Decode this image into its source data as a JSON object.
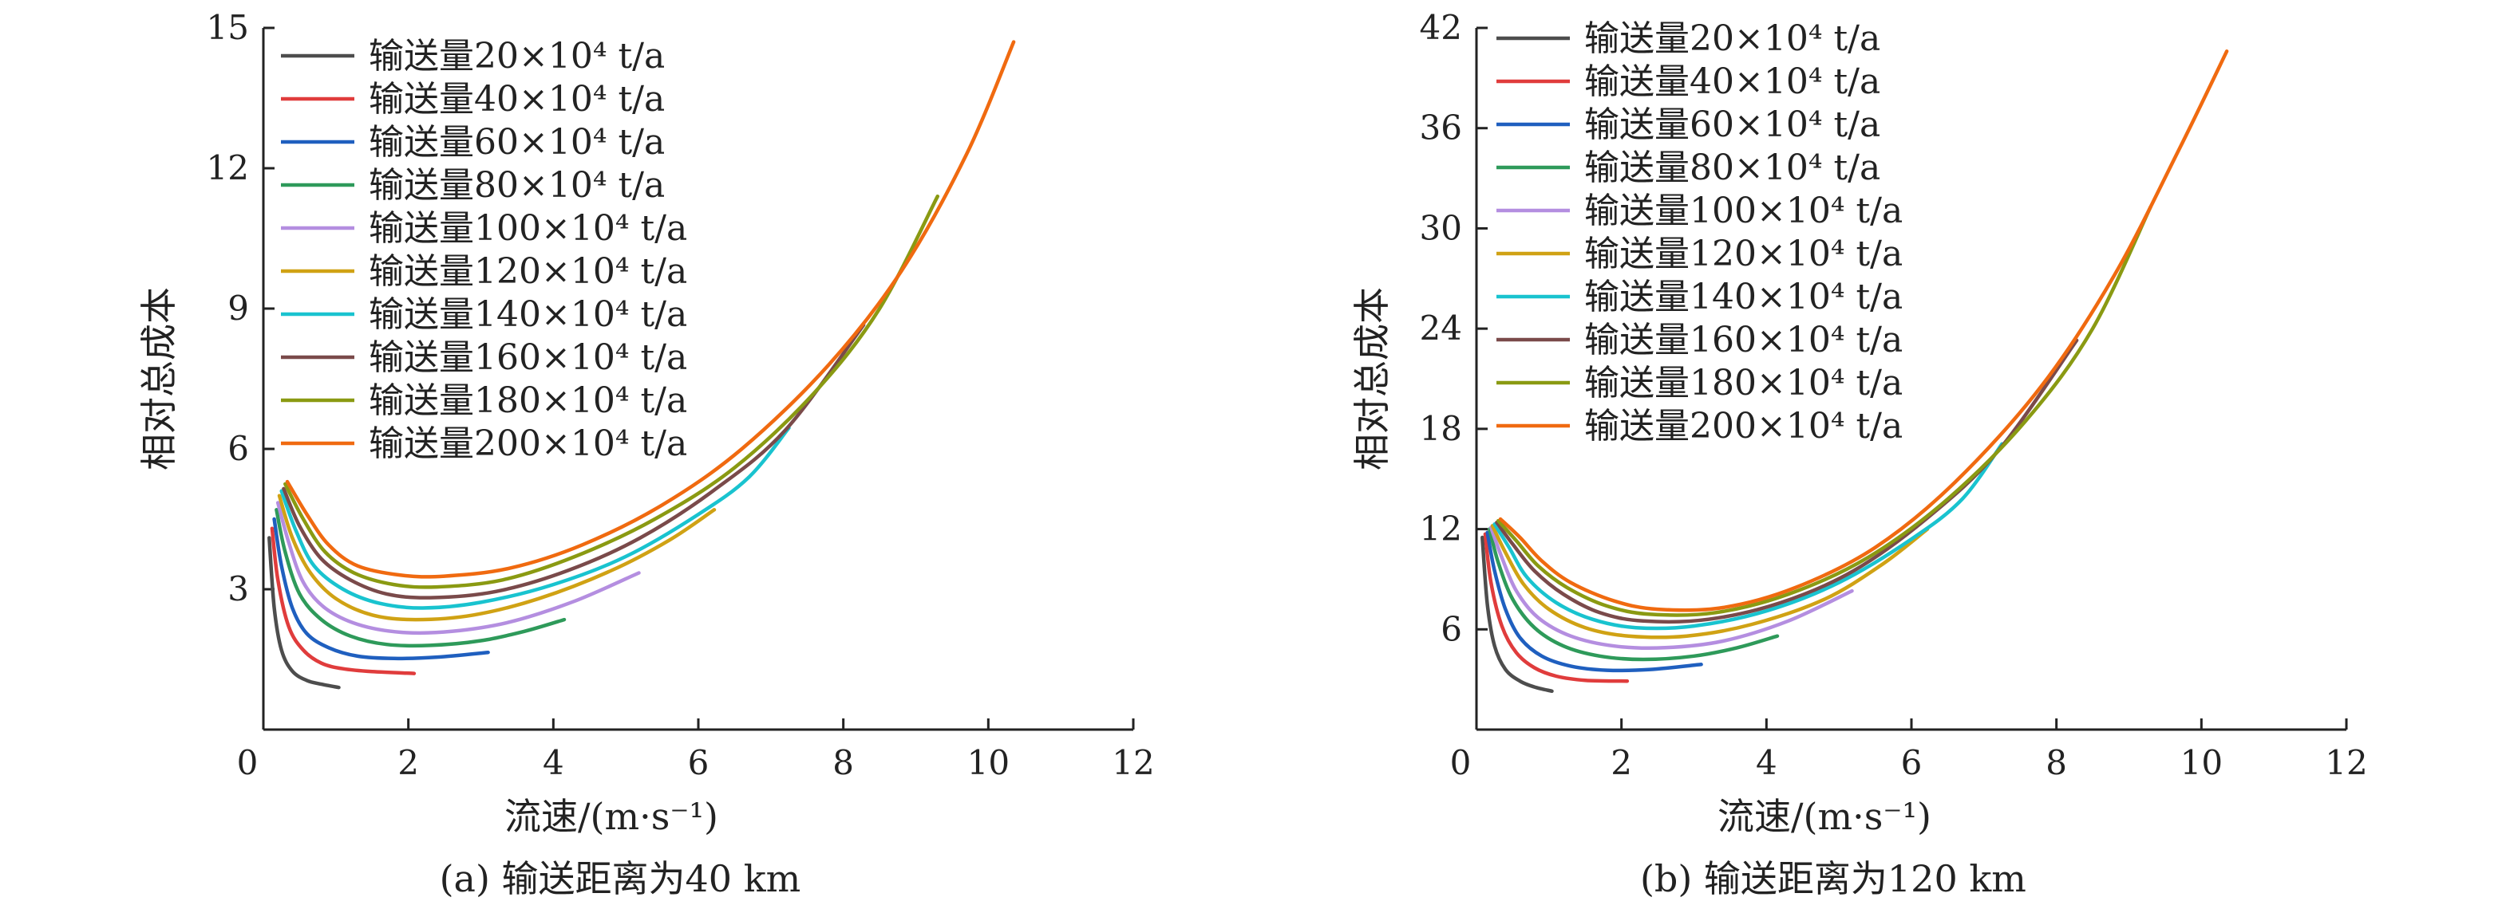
{
  "figure": {
    "captions": [
      "(a) 输送距离为40 km",
      "(b) 输送距离为120 km"
    ]
  },
  "series_meta": [
    {
      "name": "输送量20×10⁴ t/a",
      "color": "#4d4d4d"
    },
    {
      "name": "输送量40×10⁴ t/a",
      "color": "#e03c3c"
    },
    {
      "name": "输送量60×10⁴ t/a",
      "color": "#1f5fbf"
    },
    {
      "name": "输送量80×10⁴ t/a",
      "color": "#2e9a5a"
    },
    {
      "name": "输送量100×10⁴ t/a",
      "color": "#b48ee0"
    },
    {
      "name": "输送量120×10⁴ t/a",
      "color": "#d0a214"
    },
    {
      "name": "输送量140×10⁴ t/a",
      "color": "#19c3cf"
    },
    {
      "name": "输送量160×10⁴ t/a",
      "color": "#7a4a4a"
    },
    {
      "name": "输送量180×10⁴ t/a",
      "color": "#8a9a12"
    },
    {
      "name": "输送量200×10⁴ t/a",
      "color": "#f06a10"
    }
  ],
  "chart_data": [
    {
      "type": "line",
      "caption": "(a) 输送距离为40 km",
      "xlabel": "流速/(m·s⁻¹)",
      "ylabel": "相对总成本",
      "xlim": [
        0,
        12
      ],
      "ylim": [
        0,
        15
      ],
      "xticks": [
        0,
        2,
        4,
        6,
        8,
        10,
        12
      ],
      "yticks": [
        0,
        3,
        6,
        9,
        12,
        15
      ],
      "legend_position": "top-left",
      "series": [
        {
          "name": "输送量20×10⁴ t/a",
          "x": [
            0.08,
            0.15,
            0.25,
            0.4,
            0.6,
            0.8,
            1.04
          ],
          "y": [
            4.1,
            2.6,
            1.7,
            1.25,
            1.05,
            0.97,
            0.9
          ]
        },
        {
          "name": "输送量40×10⁴ t/a",
          "x": [
            0.12,
            0.2,
            0.35,
            0.55,
            0.8,
            1.1,
            1.5,
            2.08
          ],
          "y": [
            4.3,
            3.2,
            2.2,
            1.7,
            1.42,
            1.3,
            1.24,
            1.2
          ]
        },
        {
          "name": "输送量60×10⁴ t/a",
          "x": [
            0.15,
            0.25,
            0.4,
            0.6,
            0.9,
            1.3,
            1.8,
            2.4,
            3.1
          ],
          "y": [
            4.5,
            3.5,
            2.6,
            2.05,
            1.75,
            1.57,
            1.52,
            1.55,
            1.65
          ]
        },
        {
          "name": "输送量80×10⁴ t/a",
          "x": [
            0.18,
            0.3,
            0.5,
            0.8,
            1.2,
            1.7,
            2.3,
            3.0,
            3.6,
            4.15
          ],
          "y": [
            4.7,
            3.8,
            2.9,
            2.35,
            2.0,
            1.82,
            1.8,
            1.9,
            2.1,
            2.35
          ]
        },
        {
          "name": "输送量100×10⁴ t/a",
          "x": [
            0.2,
            0.35,
            0.55,
            0.85,
            1.3,
            1.9,
            2.6,
            3.4,
            4.3,
            5.18
          ],
          "y": [
            4.85,
            4.0,
            3.15,
            2.6,
            2.25,
            2.08,
            2.1,
            2.3,
            2.75,
            3.35
          ]
        },
        {
          "name": "输送量120×10⁴ t/a",
          "x": [
            0.22,
            0.4,
            0.65,
            1.0,
            1.5,
            2.1,
            2.9,
            3.8,
            4.8,
            5.6,
            6.22
          ],
          "y": [
            5.0,
            4.1,
            3.35,
            2.8,
            2.45,
            2.35,
            2.45,
            2.8,
            3.4,
            4.05,
            4.7
          ]
        },
        {
          "name": "输送量140×10⁴ t/a",
          "x": [
            0.25,
            0.45,
            0.7,
            1.1,
            1.6,
            2.2,
            3.0,
            4.0,
            5.0,
            6.0,
            6.7,
            7.25
          ],
          "y": [
            5.1,
            4.25,
            3.5,
            3.0,
            2.7,
            2.6,
            2.72,
            3.1,
            3.7,
            4.6,
            5.4,
            6.45
          ]
        },
        {
          "name": "输送量160×10⁴ t/a",
          "x": [
            0.28,
            0.5,
            0.8,
            1.2,
            1.7,
            2.3,
            3.2,
            4.2,
            5.2,
            6.2,
            7.2,
            8.28
          ],
          "y": [
            5.15,
            4.35,
            3.65,
            3.2,
            2.9,
            2.82,
            2.95,
            3.4,
            4.1,
            5.1,
            6.4,
            8.65
          ]
        },
        {
          "name": "输送量180×10⁴ t/a",
          "x": [
            0.3,
            0.55,
            0.85,
            1.25,
            1.8,
            2.4,
            3.3,
            4.3,
            5.4,
            6.5,
            7.6,
            8.5,
            9.3
          ],
          "y": [
            5.25,
            4.5,
            3.8,
            3.35,
            3.1,
            3.05,
            3.2,
            3.7,
            4.5,
            5.6,
            7.2,
            9.0,
            11.4
          ]
        },
        {
          "name": "输送量200×10⁴ t/a",
          "x": [
            0.33,
            0.6,
            0.9,
            1.3,
            1.9,
            2.5,
            3.4,
            4.4,
            5.5,
            6.6,
            7.8,
            8.8,
            9.7,
            10.35
          ],
          "y": [
            5.3,
            4.6,
            3.95,
            3.5,
            3.3,
            3.28,
            3.45,
            3.95,
            4.8,
            6.0,
            7.8,
            9.8,
            12.3,
            14.7
          ]
        }
      ]
    },
    {
      "type": "line",
      "caption": "(b) 输送距离为120 km",
      "xlabel": "流速/(m·s⁻¹)",
      "ylabel": "相对总成本",
      "xlim": [
        0,
        12
      ],
      "ylim": [
        0,
        42
      ],
      "xticks": [
        0,
        2,
        4,
        6,
        8,
        10,
        12
      ],
      "yticks": [
        0,
        6,
        12,
        18,
        24,
        30,
        36,
        42
      ],
      "legend_position": "top-left",
      "series": [
        {
          "name": "输送量20×10⁴ t/a",
          "x": [
            0.08,
            0.15,
            0.25,
            0.4,
            0.6,
            0.8,
            1.04
          ],
          "y": [
            11.5,
            7.5,
            5.0,
            3.6,
            2.9,
            2.55,
            2.3
          ]
        },
        {
          "name": "输送量40×10⁴ t/a",
          "x": [
            0.12,
            0.2,
            0.35,
            0.55,
            0.8,
            1.1,
            1.5,
            2.08
          ],
          "y": [
            11.7,
            8.8,
            6.2,
            4.6,
            3.7,
            3.2,
            2.95,
            2.9
          ]
        },
        {
          "name": "输送量60×10⁴ t/a",
          "x": [
            0.15,
            0.25,
            0.4,
            0.6,
            0.9,
            1.3,
            1.8,
            2.4,
            3.1
          ],
          "y": [
            11.8,
            9.5,
            7.2,
            5.5,
            4.4,
            3.8,
            3.55,
            3.6,
            3.9
          ]
        },
        {
          "name": "输送量80×10⁴ t/a",
          "x": [
            0.18,
            0.3,
            0.5,
            0.8,
            1.2,
            1.7,
            2.3,
            3.0,
            3.6,
            4.15
          ],
          "y": [
            12.0,
            10.0,
            7.8,
            6.1,
            5.0,
            4.4,
            4.2,
            4.4,
            4.9,
            5.6
          ]
        },
        {
          "name": "输送量100×10⁴ t/a",
          "x": [
            0.2,
            0.35,
            0.55,
            0.85,
            1.3,
            1.9,
            2.6,
            3.4,
            4.3,
            5.18
          ],
          "y": [
            12.1,
            10.3,
            8.3,
            6.7,
            5.6,
            5.0,
            4.9,
            5.3,
            6.5,
            8.3
          ]
        },
        {
          "name": "输送量120×10⁴ t/a",
          "x": [
            0.22,
            0.4,
            0.65,
            1.0,
            1.5,
            2.1,
            2.9,
            3.8,
            4.8,
            5.6,
            6.22
          ],
          "y": [
            12.2,
            10.6,
            8.7,
            7.2,
            6.1,
            5.6,
            5.6,
            6.3,
            7.8,
            9.9,
            12.0
          ]
        },
        {
          "name": "输送量140×10⁴ t/a",
          "x": [
            0.25,
            0.45,
            0.7,
            1.1,
            1.6,
            2.2,
            3.0,
            4.0,
            5.0,
            6.0,
            6.7,
            7.25
          ],
          "y": [
            12.3,
            10.9,
            9.1,
            7.6,
            6.6,
            6.1,
            6.2,
            7.1,
            8.8,
            11.4,
            13.8,
            17.1
          ]
        },
        {
          "name": "输送量160×10⁴ t/a",
          "x": [
            0.28,
            0.5,
            0.8,
            1.2,
            1.7,
            2.3,
            3.2,
            4.2,
            5.2,
            6.2,
            7.2,
            8.28
          ],
          "y": [
            12.4,
            11.1,
            9.5,
            8.1,
            7.0,
            6.5,
            6.6,
            7.6,
            9.5,
            12.6,
            16.7,
            23.3
          ]
        },
        {
          "name": "输送量180×10⁴ t/a",
          "x": [
            0.3,
            0.55,
            0.85,
            1.25,
            1.8,
            2.4,
            3.3,
            4.3,
            5.4,
            6.5,
            7.6,
            8.5,
            9.3
          ],
          "y": [
            12.5,
            11.3,
            9.8,
            8.5,
            7.4,
            6.9,
            7.0,
            8.1,
            10.3,
            13.8,
            18.6,
            24.0,
            31.3
          ]
        },
        {
          "name": "输送量200×10⁴ t/a",
          "x": [
            0.33,
            0.6,
            0.9,
            1.3,
            1.9,
            2.5,
            3.4,
            4.4,
            5.5,
            6.6,
            7.8,
            8.8,
            9.7,
            10.35
          ],
          "y": [
            12.6,
            11.5,
            10.1,
            8.8,
            7.7,
            7.2,
            7.3,
            8.5,
            10.9,
            14.8,
            20.6,
            27.2,
            34.8,
            40.6
          ]
        }
      ]
    }
  ]
}
